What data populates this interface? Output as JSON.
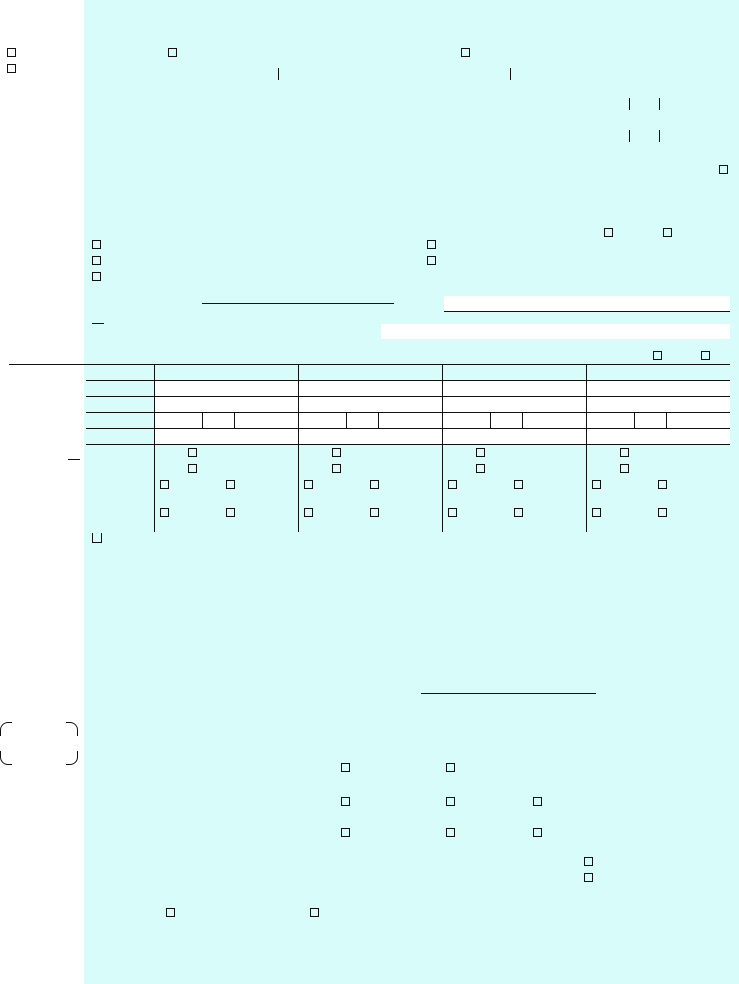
{
  "colors": {
    "panel_background": "#d8fcfa",
    "field_background": "#ffffff",
    "line_color": "#111111"
  },
  "form": {
    "checkboxes_checked": false,
    "fields_filled": false
  }
}
